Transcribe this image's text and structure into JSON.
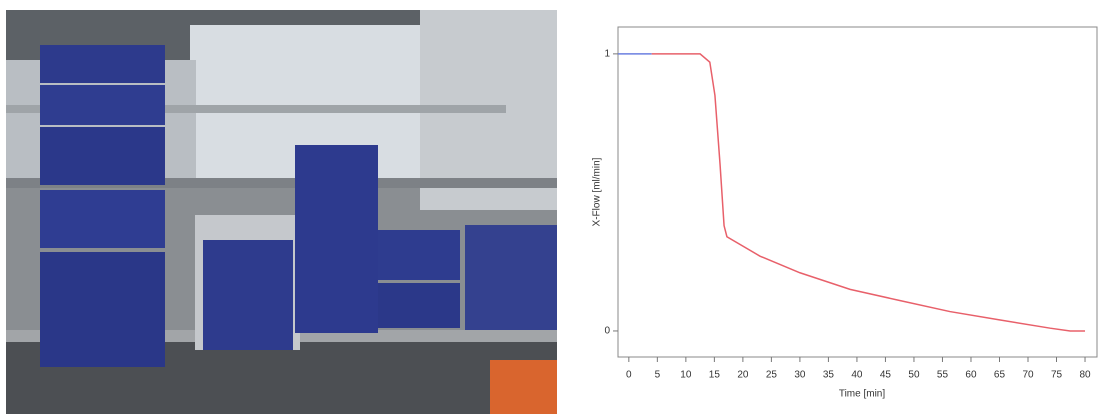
{
  "chart_data": {
    "type": "line",
    "xlabel": "Time [min]",
    "ylabel": "X-Flow [ml/min]",
    "xlim": [
      -1.9,
      82.1
    ],
    "ylim": [
      -0.094,
      1.097
    ],
    "xticks": [
      0,
      5,
      10,
      15,
      20,
      25,
      30,
      35,
      40,
      45,
      50,
      55,
      60,
      65,
      70,
      75,
      80
    ],
    "yticks": [
      0,
      1
    ],
    "series": [
      {
        "color": "#6b7fe0",
        "x": [
          -1.9,
          4
        ],
        "values": [
          1,
          1
        ]
      },
      {
        "color": "#e8606a",
        "x": [
          4,
          12.5,
          14.2,
          15.1,
          16,
          16.7,
          17.2,
          23,
          30,
          38.8,
          47.5,
          56.3,
          65,
          73.9,
          77.4,
          80
        ],
        "values": [
          1,
          1,
          0.97,
          0.85,
          0.6,
          0.38,
          0.34,
          0.27,
          0.21,
          0.15,
          0.11,
          0.07,
          0.04,
          0.01,
          0,
          0
        ]
      }
    ]
  }
}
